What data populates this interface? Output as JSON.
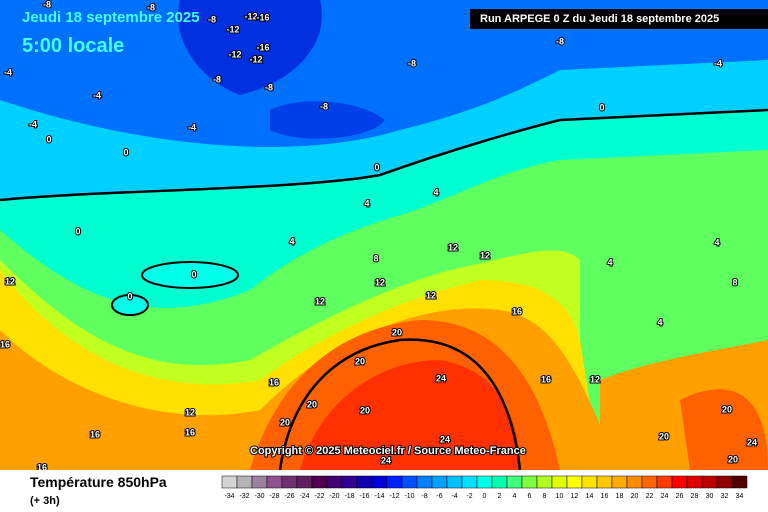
{
  "header": {
    "date": "Jeudi 18 septembre 2025",
    "time": "5:00 locale",
    "run": "Run ARPEGE 0 Z du Jeudi 18 septembre 2025"
  },
  "footer": {
    "title": "Température 850hPa",
    "subtitle": "(+ 3h)",
    "copyright": "Copyright © 2025 Meteociel.fr / Source Meteo-France"
  },
  "scale": {
    "values": [
      -34,
      -32,
      -30,
      -28,
      -26,
      -24,
      -22,
      -20,
      -18,
      -16,
      -14,
      -12,
      -10,
      -8,
      -6,
      -4,
      -2,
      0,
      2,
      4,
      6,
      8,
      10,
      12,
      14,
      16,
      18,
      20,
      22,
      24,
      26,
      28,
      30,
      32,
      34
    ],
    "colors": [
      "#d4d4d4",
      "#b4b4b4",
      "#a080a0",
      "#905090",
      "#703070",
      "#602060",
      "#500050",
      "#400070",
      "#300090",
      "#1000b0",
      "#0000d8",
      "#0020ff",
      "#0050ff",
      "#0080ff",
      "#00a0ff",
      "#00c0ff",
      "#00e0ff",
      "#00ffe8",
      "#00ffb0",
      "#40ff80",
      "#80ff40",
      "#b0ff20",
      "#e0ff00",
      "#ffff00",
      "#ffe400",
      "#ffc800",
      "#ffaa00",
      "#ff8c00",
      "#ff6400",
      "#ff3c00",
      "#ff0000",
      "#e00000",
      "#c00000",
      "#900000",
      "#500000"
    ]
  },
  "contour_labels": [
    -8,
    -8,
    -12,
    -16,
    -8,
    -12,
    -16,
    -12,
    -12,
    -8,
    -8,
    -8,
    -8,
    -8,
    -4,
    -4,
    -4,
    -4,
    -4,
    0,
    0,
    0,
    0,
    0,
    4,
    4,
    4,
    4,
    4,
    4,
    8,
    8,
    12,
    12,
    12,
    12,
    12,
    12,
    16,
    16,
    16,
    16,
    16,
    16,
    20,
    20,
    20,
    20,
    20,
    24,
    24,
    24,
    20,
    20,
    24,
    20,
    16,
    12,
    12,
    0,
    0
  ]
}
